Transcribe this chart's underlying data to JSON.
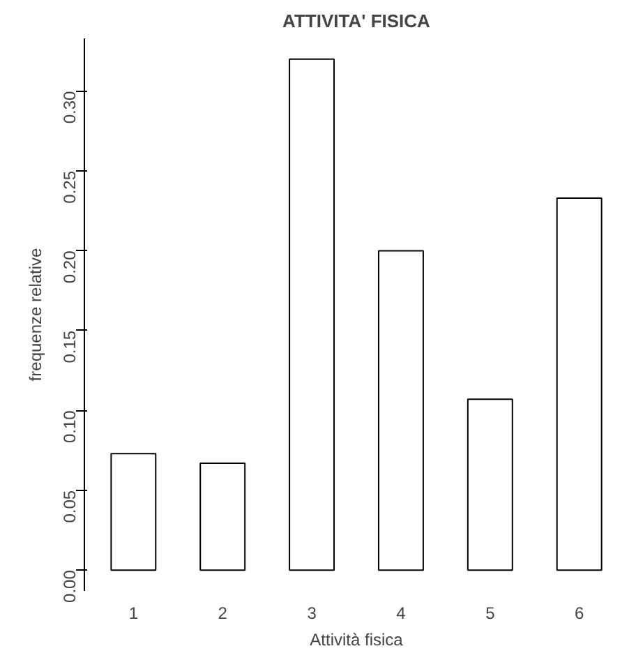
{
  "chart_data": {
    "type": "bar",
    "title": "ATTIVITA' FISICA",
    "xlabel": "Attività fisica",
    "ylabel": "frequenze relative",
    "categories": [
      "1",
      "2",
      "3",
      "4",
      "5",
      "6"
    ],
    "values": [
      0.073,
      0.067,
      0.32,
      0.2,
      0.107,
      0.233
    ],
    "color": "#ffffff",
    "ylim": [
      -0.013,
      0.333
    ],
    "yticks": [
      {
        "value": 0,
        "label": "0.00"
      },
      {
        "value": 0.05,
        "label": "0.05"
      },
      {
        "value": 0.1,
        "label": "0.10"
      },
      {
        "value": 0.15,
        "label": "0.15"
      },
      {
        "value": 0.2,
        "label": "0.20"
      },
      {
        "value": 0.25,
        "label": "0.25"
      },
      {
        "value": 0.3,
        "label": "0.30"
      }
    ],
    "grid": false
  }
}
